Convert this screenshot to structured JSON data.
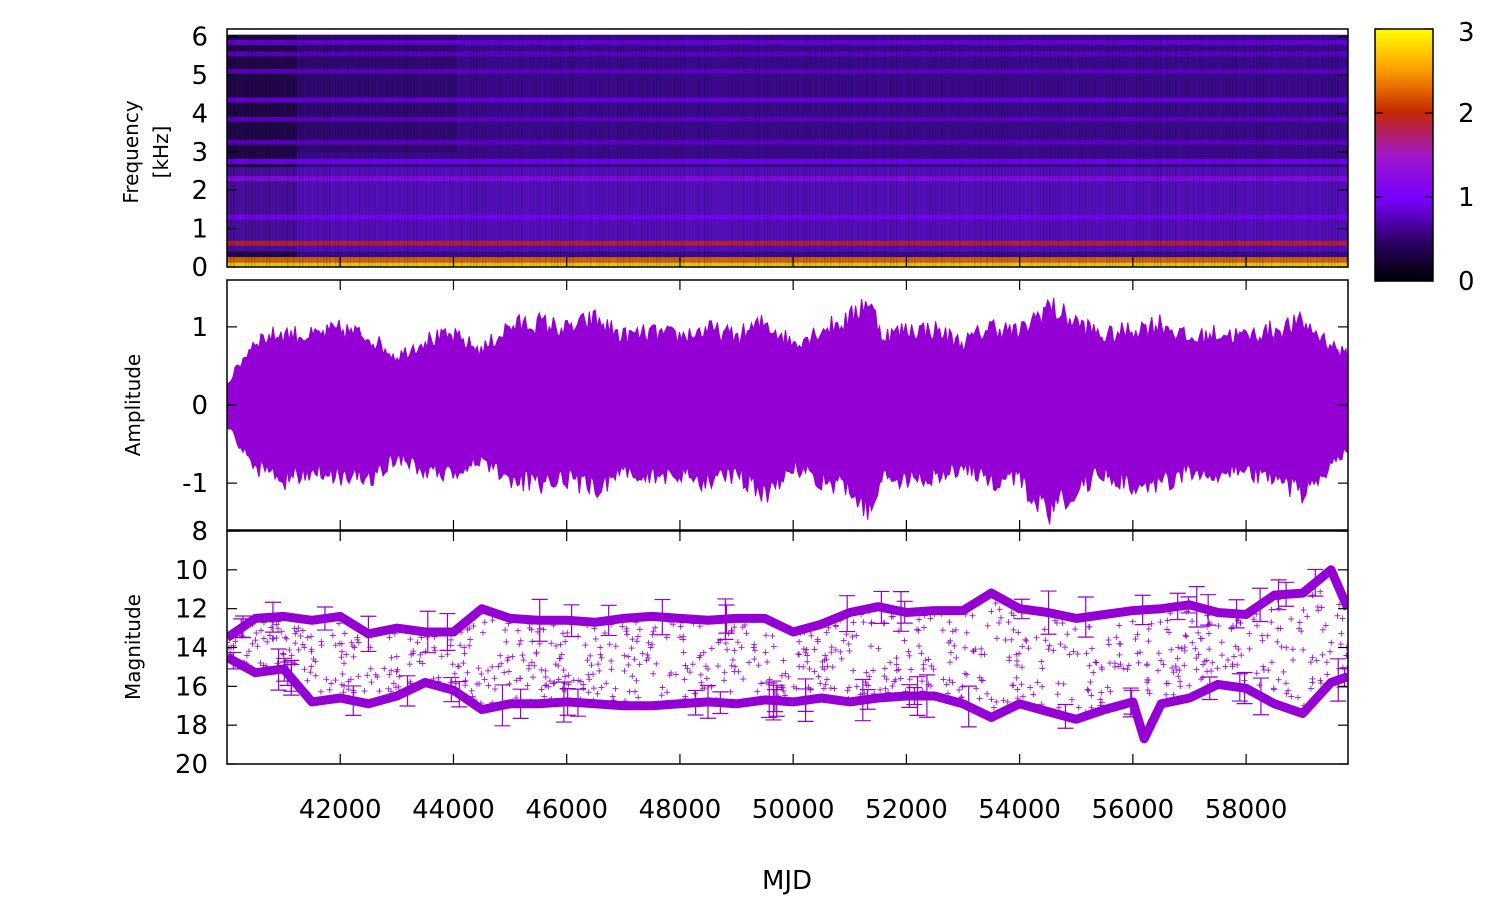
{
  "chart_data": [
    {
      "type": "heatmap",
      "panel": "spectrogram",
      "ylabel": [
        "Frequency",
        "[kHz]"
      ],
      "ylim": [
        0,
        6.2
      ],
      "yticks": [
        0,
        1,
        2,
        3,
        4,
        5,
        6
      ],
      "xlim": [
        40000,
        59800
      ],
      "colorbar": {
        "min": 0,
        "max": 3,
        "ticks": [
          0,
          1,
          2,
          3
        ],
        "palette": [
          "#000000",
          "#7a00ff",
          "#c42800",
          "#ffa500",
          "#ffff00"
        ]
      },
      "bands_khz": [
        {
          "freq": 0.05,
          "level": 2.9
        },
        {
          "freq": 0.18,
          "level": 2.3
        },
        {
          "freq": 0.62,
          "level": 1.9
        },
        {
          "freq": 1.3,
          "level": 1.0
        },
        {
          "freq": 2.3,
          "level": 1.2
        },
        {
          "freq": 2.75,
          "level": 1.0
        },
        {
          "freq": 3.25,
          "level": 0.8
        },
        {
          "freq": 3.85,
          "level": 0.8
        },
        {
          "freq": 4.35,
          "level": 0.9
        },
        {
          "freq": 5.1,
          "level": 0.8
        },
        {
          "freq": 5.55,
          "level": 0.8
        },
        {
          "freq": 5.85,
          "level": 0.9
        }
      ]
    },
    {
      "type": "area",
      "panel": "waveform",
      "ylabel": "Amplitude",
      "ylim": [
        -1.6,
        1.6
      ],
      "yticks": [
        -1,
        0,
        1
      ],
      "xlim": [
        40000,
        59800
      ],
      "color": "#9400d3",
      "envelope": {
        "x": [
          40000,
          40500,
          41000,
          41500,
          42000,
          42500,
          43000,
          43500,
          44000,
          44500,
          45000,
          45500,
          46000,
          46500,
          47000,
          47500,
          48000,
          48500,
          49000,
          49500,
          50000,
          50500,
          51000,
          51300,
          51600,
          52000,
          52500,
          53000,
          53500,
          54000,
          54500,
          55000,
          55500,
          56000,
          56500,
          57000,
          57500,
          58000,
          58500,
          59000,
          59800
        ],
        "upper": [
          0.3,
          0.95,
          1.05,
          1.0,
          1.1,
          1.0,
          0.7,
          0.95,
          1.0,
          0.8,
          1.15,
          1.2,
          1.1,
          1.25,
          1.0,
          1.05,
          1.0,
          1.1,
          1.0,
          1.2,
          0.9,
          1.1,
          1.25,
          1.55,
          1.0,
          1.1,
          1.1,
          0.9,
          1.15,
          1.05,
          1.45,
          1.2,
          1.0,
          1.1,
          1.2,
          0.95,
          1.05,
          1.0,
          1.1,
          1.2,
          0.7
        ],
        "lower": [
          -0.3,
          -0.9,
          -1.1,
          -0.95,
          -1.05,
          -1.1,
          -0.75,
          -1.0,
          -1.0,
          -0.8,
          -1.1,
          -1.15,
          -1.1,
          -1.2,
          -1.0,
          -1.05,
          -1.0,
          -1.15,
          -1.0,
          -1.3,
          -0.9,
          -1.1,
          -1.2,
          -1.55,
          -1.0,
          -1.1,
          -1.05,
          -0.9,
          -1.1,
          -1.1,
          -1.6,
          -1.2,
          -1.0,
          -1.15,
          -1.15,
          -0.95,
          -1.0,
          -1.0,
          -1.05,
          -1.3,
          -0.65
        ]
      }
    },
    {
      "type": "scatter",
      "panel": "lightcurve",
      "ylabel": "Magnitude",
      "ylim": [
        20,
        8
      ],
      "yticks": [
        8,
        10,
        12,
        14,
        16,
        18,
        20
      ],
      "xlim": [
        40000,
        59800
      ],
      "xlabel": "MJD",
      "xticks": [
        42000,
        44000,
        46000,
        48000,
        50000,
        52000,
        54000,
        56000,
        58000
      ],
      "color": "#9400d3",
      "upper_band": {
        "x": [
          40000,
          40500,
          41000,
          41500,
          42000,
          42500,
          43000,
          43500,
          44000,
          44500,
          45000,
          45500,
          46000,
          46500,
          47000,
          47500,
          48000,
          48500,
          49000,
          49500,
          50000,
          50500,
          51000,
          51500,
          52000,
          52500,
          53000,
          53500,
          54000,
          54500,
          55000,
          55500,
          56000,
          56500,
          57000,
          57500,
          58000,
          58500,
          59000,
          59500,
          59800
        ],
        "mag": [
          13.5,
          12.5,
          12.4,
          12.6,
          12.4,
          13.3,
          13.0,
          13.2,
          13.2,
          12.0,
          12.5,
          12.6,
          12.6,
          12.7,
          12.5,
          12.4,
          12.5,
          12.6,
          12.5,
          12.5,
          13.2,
          12.8,
          12.2,
          11.9,
          12.2,
          12.1,
          12.1,
          11.2,
          12.0,
          12.2,
          12.5,
          12.3,
          12.1,
          12.0,
          11.8,
          12.2,
          12.3,
          11.3,
          11.2,
          10.0,
          12.0
        ]
      },
      "lower_band": {
        "x": [
          40000,
          40500,
          41000,
          41500,
          42000,
          42500,
          43000,
          43500,
          44000,
          44500,
          45000,
          45500,
          46000,
          46500,
          47000,
          47500,
          48000,
          48500,
          49000,
          49500,
          50000,
          50500,
          51000,
          51500,
          52000,
          52500,
          53000,
          53500,
          54000,
          54500,
          55000,
          55500,
          56000,
          56200,
          56500,
          57000,
          57500,
          58000,
          58500,
          59000,
          59500,
          59800
        ],
        "mag": [
          14.5,
          15.3,
          15.1,
          16.8,
          16.6,
          16.9,
          16.5,
          15.8,
          16.2,
          17.2,
          16.9,
          16.9,
          16.8,
          16.9,
          17.0,
          17.0,
          16.9,
          16.8,
          16.9,
          16.7,
          16.8,
          16.6,
          16.8,
          16.6,
          16.5,
          16.5,
          16.9,
          17.6,
          16.9,
          17.3,
          17.7,
          17.2,
          16.8,
          18.7,
          16.9,
          16.6,
          15.9,
          16.1,
          16.9,
          17.4,
          15.8,
          15.5
        ]
      }
    }
  ]
}
